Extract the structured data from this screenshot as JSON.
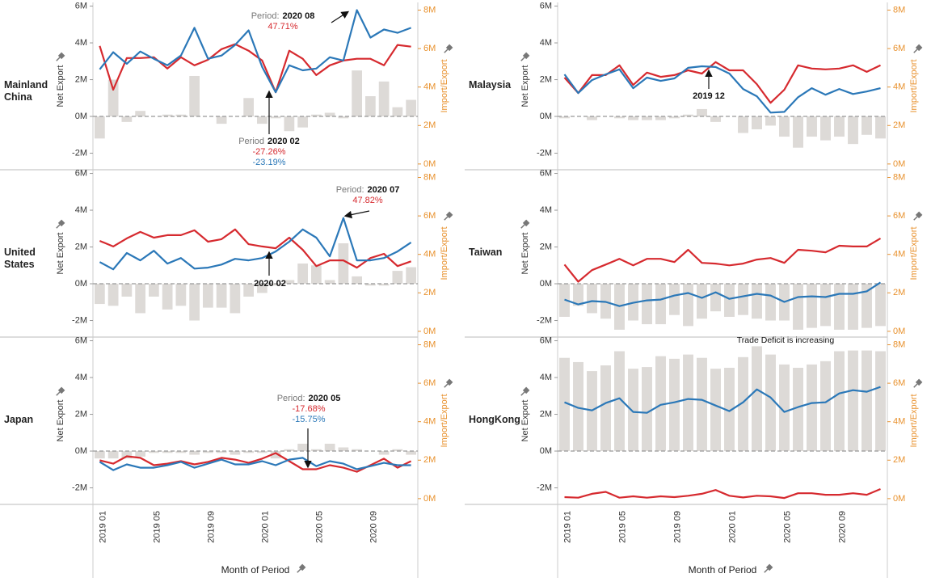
{
  "chart_data": [
    {
      "type": "combo",
      "title": "Mainland China",
      "ylabel": "Net Export",
      "y2label": "Import/Export",
      "ylim": [
        -2.9,
        6.2
      ],
      "yticks": [
        {
          "value": -2,
          "label": "-2M"
        },
        {
          "value": 0,
          "label": "0M"
        },
        {
          "value": 2,
          "label": "2M"
        },
        {
          "value": 4,
          "label": "4M"
        },
        {
          "value": 6,
          "label": "6M"
        }
      ],
      "y2lim": [
        -0.3,
        8.4
      ],
      "y2ticks": [
        {
          "value": 0,
          "label": "0M"
        },
        {
          "value": 2,
          "label": "2M"
        },
        {
          "value": 4,
          "label": "4M"
        },
        {
          "value": 6,
          "label": "6M"
        },
        {
          "value": 8,
          "label": "8M"
        }
      ],
      "series": [
        {
          "type": "bar",
          "color": "#dddad7",
          "values": [
            -1.2,
            2.0,
            -0.3,
            0.3,
            0,
            0.1,
            0.1,
            2.2,
            0,
            -0.4,
            0,
            1.0,
            -0.4,
            -0.1,
            -0.8,
            -0.6,
            0.1,
            0.2,
            -0.1,
            2.5,
            1.1,
            1.9,
            0.5,
            0.9
          ]
        },
        {
          "type": "line",
          "axis": "y2",
          "color": "#d62a2f",
          "values": [
            6.14,
            3.86,
            5.51,
            5.51,
            5.55,
            4.96,
            5.55,
            5.13,
            5.42,
            5.97,
            6.23,
            5.89,
            5.38,
            3.73,
            5.89,
            5.47,
            4.62,
            5.13,
            5.38,
            5.47,
            5.47,
            5.13,
            6.19,
            6.1
          ]
        },
        {
          "type": "line",
          "axis": "y2",
          "color": "#2b78b8",
          "values": [
            4.92,
            5.81,
            5.21,
            5.85,
            5.47,
            5.13,
            5.64,
            7.08,
            5.47,
            5.64,
            6.19,
            6.95,
            5.04,
            3.73,
            5.13,
            4.87,
            4.96,
            5.55,
            5.38,
            8.0,
            6.57,
            6.99,
            6.82,
            7.08
          ]
        }
      ],
      "annotations": [
        {
          "label": "Period:",
          "period": "2020 08",
          "pcts": [
            {
              "text": "47.71%",
              "color": "#d62a2f"
            }
          ]
        },
        {
          "label": "Period",
          "period": "2020 02",
          "pcts": [
            {
              "text": "-27.26%",
              "color": "#d62a2f"
            },
            {
              "text": "-23.19%",
              "color": "#2b78b8"
            }
          ]
        }
      ]
    },
    {
      "type": "combo",
      "title": "United States",
      "ylabel": "Net Export",
      "y2label": "Import/Export",
      "ylim": [
        -2.9,
        6.2
      ],
      "yticks": [
        {
          "value": -2,
          "label": "-2M"
        },
        {
          "value": 0,
          "label": "0M"
        },
        {
          "value": 2,
          "label": "2M"
        },
        {
          "value": 4,
          "label": "4M"
        },
        {
          "value": 6,
          "label": "6M"
        }
      ],
      "y2lim": [
        -0.3,
        8.4
      ],
      "y2ticks": [
        {
          "value": 0,
          "label": "0M"
        },
        {
          "value": 2,
          "label": "2M"
        },
        {
          "value": 4,
          "label": "4M"
        },
        {
          "value": 6,
          "label": "6M"
        },
        {
          "value": 8,
          "label": "8M"
        }
      ],
      "series": [
        {
          "type": "bar",
          "color": "#dddad7",
          "values": [
            -1.1,
            -1.2,
            -0.7,
            -1.6,
            -0.7,
            -1.4,
            -1.2,
            -2.0,
            -1.3,
            -1.3,
            -1.6,
            -0.7,
            -0.5,
            -0.1,
            0.2,
            1.1,
            1.0,
            0.2,
            2.2,
            0.4,
            -0.1,
            -0.1,
            0.7,
            0.9
          ]
        },
        {
          "type": "line",
          "axis": "y2",
          "color": "#d62a2f",
          "values": [
            4.7,
            4.41,
            4.83,
            5.17,
            4.87,
            5.0,
            5.0,
            5.25,
            4.66,
            4.79,
            5.3,
            4.53,
            4.41,
            4.32,
            4.87,
            4.24,
            3.39,
            3.69,
            3.69,
            3.31,
            3.81,
            4.03,
            3.39,
            3.64
          ]
        },
        {
          "type": "line",
          "axis": "y2",
          "color": "#2b78b8",
          "values": [
            3.6,
            3.22,
            4.07,
            3.69,
            4.19,
            3.52,
            3.81,
            3.26,
            3.31,
            3.47,
            3.77,
            3.69,
            3.81,
            4.15,
            4.66,
            5.3,
            4.87,
            3.9,
            5.89,
            3.69,
            3.69,
            3.81,
            4.15,
            4.62
          ]
        }
      ],
      "annotations": [
        {
          "label": "Period:",
          "period": "2020 07",
          "pcts": [
            {
              "text": "47.82%",
              "color": "#d62a2f"
            }
          ]
        },
        {
          "period": "2020 02"
        }
      ]
    },
    {
      "type": "combo",
      "title": "Japan",
      "ylabel": "Net Export",
      "y2label": "Import/Export",
      "xlabel": "Month of Period",
      "categories": [
        "2019 01",
        null,
        null,
        null,
        "2019 05",
        null,
        null,
        null,
        "2019 09",
        null,
        null,
        null,
        "2020 01",
        null,
        null,
        null,
        "2020 05",
        null,
        null,
        null,
        "2020 09",
        null,
        null,
        null
      ],
      "ylim": [
        -2.9,
        6.2
      ],
      "yticks": [
        {
          "value": -2,
          "label": "-2M"
        },
        {
          "value": 0,
          "label": "0M"
        },
        {
          "value": 2,
          "label": "2M"
        },
        {
          "value": 4,
          "label": "4M"
        },
        {
          "value": 6,
          "label": "6M"
        }
      ],
      "y2lim": [
        -0.3,
        8.4
      ],
      "y2ticks": [
        {
          "value": 0,
          "label": "0M"
        },
        {
          "value": 2,
          "label": "2M"
        },
        {
          "value": 4,
          "label": "4M"
        },
        {
          "value": 6,
          "label": "6M"
        },
        {
          "value": 8,
          "label": "8M"
        }
      ],
      "series": [
        {
          "type": "bar",
          "color": "#dddad7",
          "values": [
            -0.4,
            -0.4,
            -0.4,
            -0.3,
            -0.1,
            -0.1,
            -0.1,
            -0.2,
            -0.1,
            -0.1,
            -0.2,
            -0.1,
            -0.1,
            -0.4,
            0.1,
            0.4,
            0.1,
            0.4,
            0.2,
            0.1,
            0,
            -0.2,
            0.1,
            -0.2
          ]
        },
        {
          "type": "line",
          "axis": "y2",
          "color": "#d62a2f",
          "values": [
            1.99,
            1.82,
            2.2,
            2.12,
            1.74,
            1.82,
            1.95,
            1.78,
            1.91,
            2.12,
            2.03,
            1.86,
            2.08,
            2.37,
            1.95,
            1.53,
            1.53,
            1.74,
            1.61,
            1.4,
            1.74,
            2.08,
            1.61,
            1.95
          ]
        },
        {
          "type": "line",
          "axis": "y2",
          "color": "#2b78b8",
          "values": [
            1.91,
            1.48,
            1.78,
            1.61,
            1.61,
            1.74,
            1.91,
            1.61,
            1.82,
            2.03,
            1.78,
            1.78,
            1.95,
            1.74,
            2.03,
            2.12,
            1.69,
            1.95,
            1.82,
            1.53,
            1.69,
            1.86,
            1.74,
            1.74
          ]
        }
      ],
      "annotations": [
        {
          "label": "Period:",
          "period": "2020 05",
          "pcts": [
            {
              "text": "-17.68%",
              "color": "#d62a2f"
            },
            {
              "text": "-15.75%",
              "color": "#2b78b8"
            }
          ]
        }
      ]
    },
    {
      "type": "combo",
      "title": "Malaysia",
      "ylabel": "Net Export",
      "y2label": "Import/Export",
      "ylim": [
        -2.9,
        6.2
      ],
      "yticks": [
        {
          "value": -2,
          "label": "-2M"
        },
        {
          "value": 0,
          "label": "0M"
        },
        {
          "value": 2,
          "label": "2M"
        },
        {
          "value": 4,
          "label": "4M"
        },
        {
          "value": 6,
          "label": "6M"
        }
      ],
      "y2lim": [
        -0.3,
        8.4
      ],
      "y2ticks": [
        {
          "value": 0,
          "label": "0M"
        },
        {
          "value": 2,
          "label": "2M"
        },
        {
          "value": 4,
          "label": "4M"
        },
        {
          "value": 6,
          "label": "6M"
        },
        {
          "value": 8,
          "label": "8M"
        }
      ],
      "series": [
        {
          "type": "bar",
          "color": "#dddad7",
          "values": [
            -0.1,
            0,
            -0.2,
            0,
            -0.1,
            -0.2,
            -0.2,
            -0.2,
            -0.1,
            0.1,
            0.4,
            -0.3,
            0,
            -0.9,
            -0.7,
            -0.5,
            -1.1,
            -1.7,
            -1.1,
            -1.3,
            -1.1,
            -1.5,
            -1.0,
            -1.2
          ]
        },
        {
          "type": "line",
          "axis": "y2",
          "color": "#d62a2f",
          "values": [
            4.49,
            3.69,
            4.62,
            4.62,
            5.13,
            4.11,
            4.75,
            4.53,
            4.62,
            4.87,
            4.7,
            5.3,
            4.87,
            4.87,
            4.15,
            3.18,
            3.86,
            5.13,
            4.96,
            4.92,
            4.96,
            5.13,
            4.79,
            5.13
          ]
        },
        {
          "type": "line",
          "axis": "y2",
          "color": "#2b78b8",
          "values": [
            4.66,
            3.69,
            4.36,
            4.66,
            4.92,
            3.94,
            4.49,
            4.32,
            4.45,
            5.0,
            5.08,
            5.04,
            4.7,
            3.9,
            3.52,
            2.67,
            2.71,
            3.47,
            3.94,
            3.6,
            3.9,
            3.64,
            3.77,
            3.94
          ]
        }
      ],
      "annotations": [
        {
          "period": "2019 12"
        }
      ]
    },
    {
      "type": "combo",
      "title": "Taiwan",
      "ylabel": "Net Export",
      "y2label": "Import/Export",
      "ylim": [
        -2.9,
        6.2
      ],
      "yticks": [
        {
          "value": -2,
          "label": "-2M"
        },
        {
          "value": 0,
          "label": "0M"
        },
        {
          "value": 2,
          "label": "2M"
        },
        {
          "value": 4,
          "label": "4M"
        },
        {
          "value": 6,
          "label": "6M"
        }
      ],
      "y2lim": [
        -0.3,
        8.4
      ],
      "y2ticks": [
        {
          "value": 0,
          "label": "0M"
        },
        {
          "value": 2,
          "label": "2M"
        },
        {
          "value": 4,
          "label": "4M"
        },
        {
          "value": 6,
          "label": "6M"
        },
        {
          "value": 8,
          "label": "8M"
        }
      ],
      "series": [
        {
          "type": "bar",
          "color": "#dddad7",
          "values": [
            -1.8,
            -1.2,
            -1.6,
            -1.9,
            -2.5,
            -2.0,
            -2.2,
            -2.2,
            -1.7,
            -2.3,
            -1.9,
            -1.5,
            -1.8,
            -1.7,
            -1.9,
            -2.0,
            -2.0,
            -2.5,
            -2.4,
            -2.3,
            -2.5,
            -2.5,
            -2.4,
            -2.3
          ]
        },
        {
          "type": "line",
          "axis": "y2",
          "color": "#d62a2f",
          "values": [
            3.47,
            2.58,
            3.18,
            3.47,
            3.77,
            3.43,
            3.77,
            3.77,
            3.6,
            4.24,
            3.56,
            3.52,
            3.43,
            3.52,
            3.73,
            3.81,
            3.56,
            4.24,
            4.19,
            4.11,
            4.45,
            4.41,
            4.41,
            4.83
          ]
        },
        {
          "type": "line",
          "axis": "y2",
          "color": "#2b78b8",
          "values": [
            1.65,
            1.4,
            1.57,
            1.53,
            1.31,
            1.48,
            1.61,
            1.65,
            1.86,
            1.99,
            1.74,
            2.03,
            1.69,
            1.82,
            1.95,
            1.86,
            1.53,
            1.78,
            1.82,
            1.78,
            1.95,
            1.95,
            2.08,
            2.54
          ]
        }
      ]
    },
    {
      "type": "combo",
      "title": "HongKong",
      "ylabel": "Net Export",
      "y2label": "Import/Export",
      "xlabel": "Month of Period",
      "categories": [
        "2019 01",
        null,
        null,
        null,
        "2019 05",
        null,
        null,
        null,
        "2019 09",
        null,
        null,
        null,
        "2020 01",
        null,
        null,
        null,
        "2020 05",
        null,
        null,
        null,
        "2020 09",
        null,
        null,
        null
      ],
      "ylim": [
        -2.9,
        6.2
      ],
      "yticks": [
        {
          "value": -2,
          "label": "-2M"
        },
        {
          "value": 0,
          "label": "0M"
        },
        {
          "value": 2,
          "label": "2M"
        },
        {
          "value": 4,
          "label": "4M"
        },
        {
          "value": 6,
          "label": "6M"
        }
      ],
      "y2lim": [
        -0.3,
        8.4
      ],
      "y2ticks": [
        {
          "value": 0,
          "label": "0M"
        },
        {
          "value": 2,
          "label": "2M"
        },
        {
          "value": 4,
          "label": "4M"
        },
        {
          "value": 6,
          "label": "6M"
        },
        {
          "value": 8,
          "label": "8M"
        }
      ],
      "series": [
        {
          "type": "bar",
          "color": "#dddad7",
          "values": [
            5.07,
            4.84,
            4.35,
            4.66,
            5.43,
            4.48,
            4.57,
            5.16,
            5.02,
            5.25,
            5.07,
            4.48,
            4.53,
            5.11,
            5.7,
            5.25,
            4.71,
            4.53,
            4.71,
            4.89,
            5.43,
            5.47,
            5.47,
            5.43
          ]
        },
        {
          "type": "line",
          "axis": "y2",
          "color": "#d62a2f",
          "values": [
            0.08,
            0.05,
            0.25,
            0.35,
            0.05,
            0.12,
            0.05,
            0.12,
            0.08,
            0.15,
            0.25,
            0.45,
            0.15,
            0.06,
            0.15,
            0.12,
            0.03,
            0.28,
            0.28,
            0.2,
            0.2,
            0.28,
            0.2,
            0.5
          ]
        },
        {
          "type": "line",
          "axis": "y2",
          "color": "#2b78b8",
          "values": [
            5.01,
            4.72,
            4.59,
            4.97,
            5.22,
            4.51,
            4.46,
            4.88,
            5.01,
            5.18,
            5.14,
            4.84,
            4.55,
            5.01,
            5.68,
            5.26,
            4.51,
            4.76,
            4.97,
            5.01,
            5.47,
            5.64,
            5.56,
            5.81
          ]
        }
      ],
      "annotations": [
        {
          "text": "Trade Deficit is increasing"
        }
      ]
    }
  ]
}
